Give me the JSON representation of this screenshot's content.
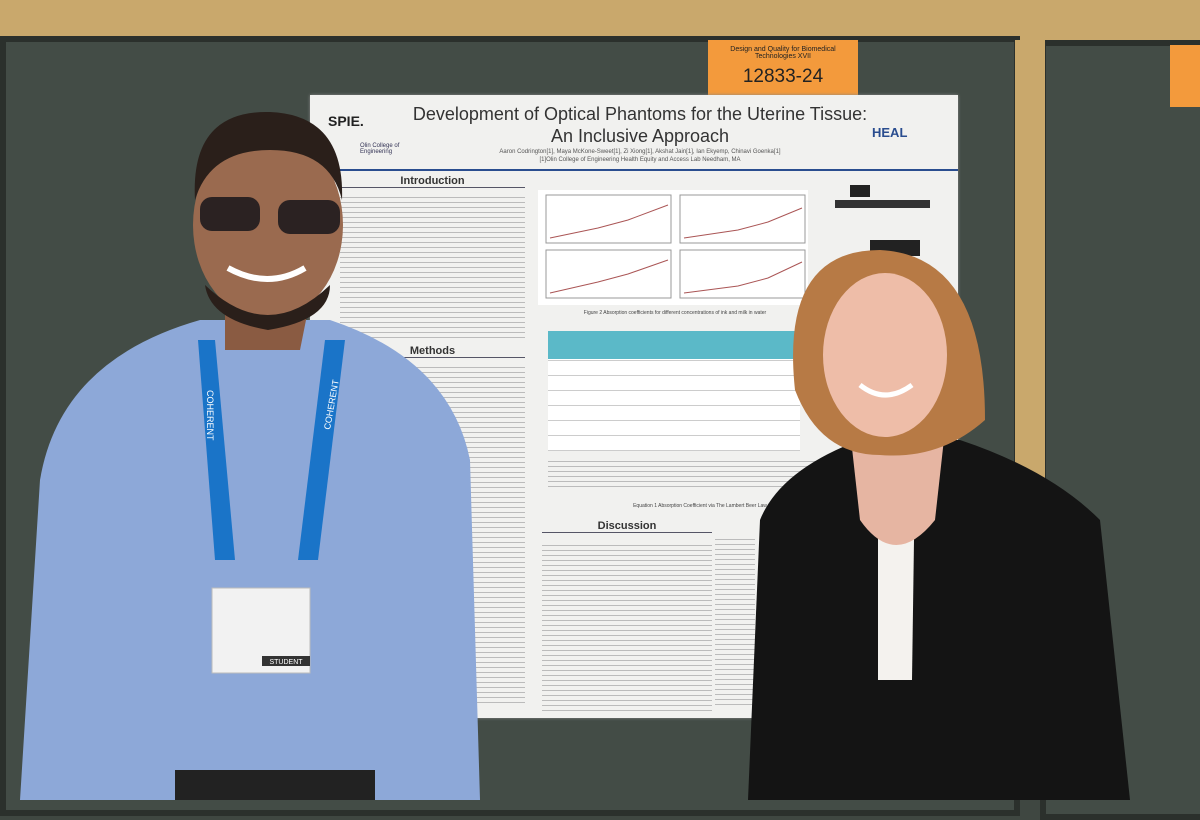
{
  "sign": {
    "title": "Design and Quality for Biomedical Technologies XVII",
    "number": "12833-24"
  },
  "poster": {
    "logo": "SPIE.",
    "institution": "Olin College of Engineering",
    "title": "Development of Optical Phantoms for the Uterine Tissue: An Inclusive Approach",
    "authors": "Aaron Codrington[1], Maya McKone-Sweet[1], Zi Xiong[1], Akshat Jain[1], Ian Ekyemp, Chinavi Goenka[1]",
    "affiliation": "[1]Olin College of Engineering Health Equity and Access Lab Needham, MA",
    "lab_logo": "HEAL",
    "sections": [
      "Introduction",
      "Methods",
      "Discussion"
    ],
    "figure_caption": "Figure 2 Absorption coefficients for different concentrations of ink and milk in water",
    "equation_caption": "Equation 1 Absorption Coefficient via The Lambert Beer Law"
  },
  "lanyard": "COHERENT",
  "badge": "STUDENT"
}
